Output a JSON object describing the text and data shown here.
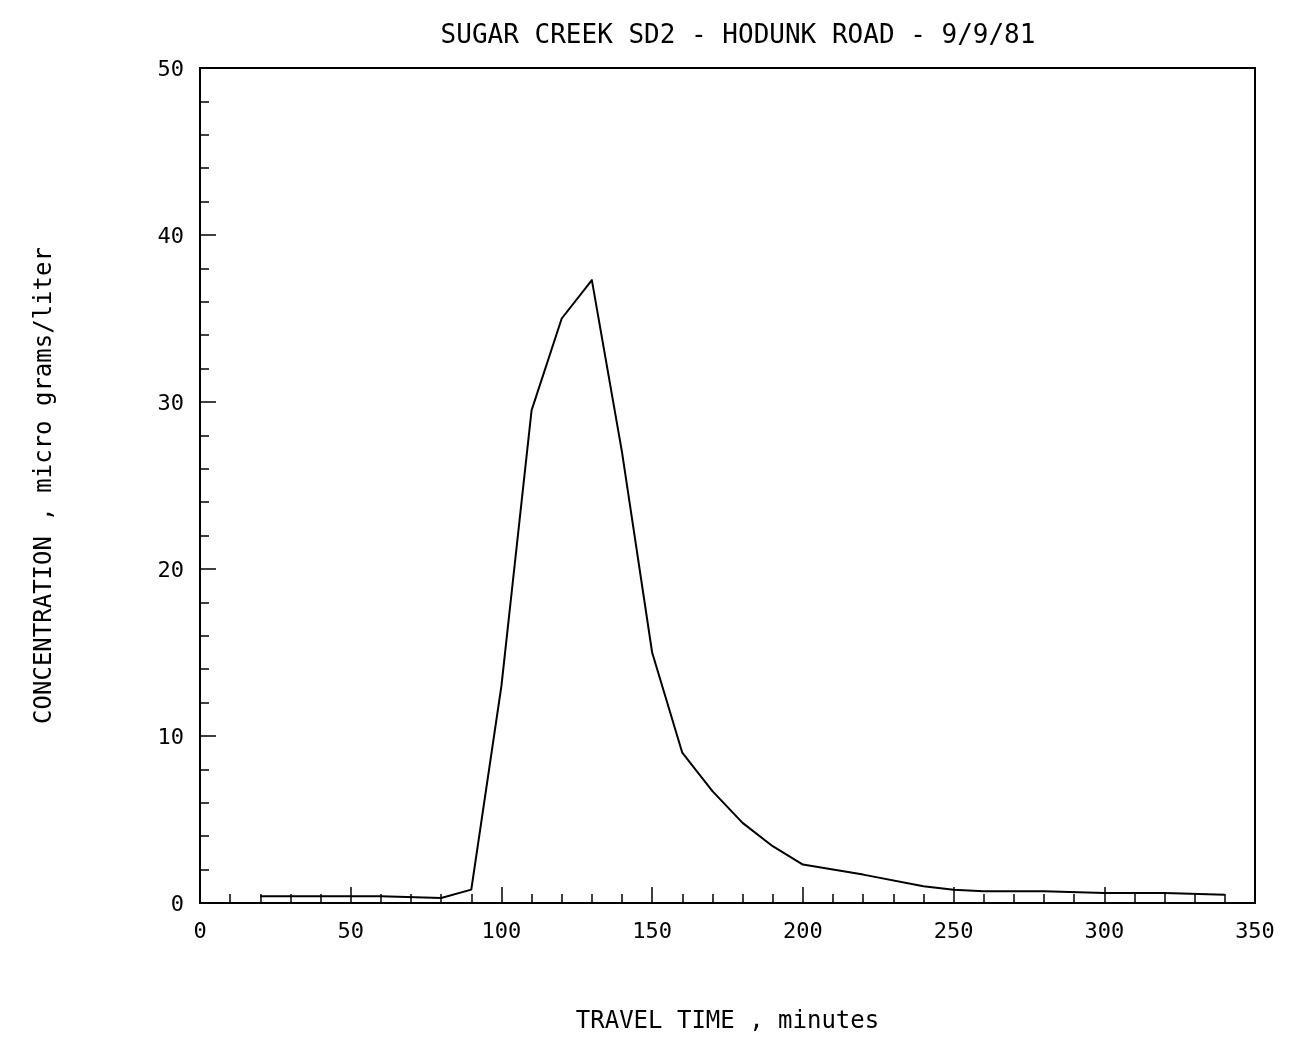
{
  "chart_data": {
    "type": "line",
    "title": "SUGAR CREEK SD2 - HODUNK ROAD - 9/9/81",
    "xlabel": "TRAVEL TIME , minutes",
    "ylabel": "CONCENTRATION , micro grams/liter",
    "x": [
      20,
      40,
      60,
      80,
      90,
      100,
      110,
      120,
      130,
      140,
      150,
      160,
      170,
      180,
      190,
      200,
      220,
      240,
      250,
      260,
      280,
      300,
      320,
      340
    ],
    "series": [
      {
        "color": "#000000",
        "values": [
          0.4,
          0.4,
          0.4,
          0.3,
          0.8,
          13,
          29.5,
          35,
          37.3,
          27,
          15,
          9,
          6.7,
          4.8,
          3.4,
          2.3,
          1.7,
          1,
          0.8,
          0.7,
          0.7,
          0.6,
          0.6,
          0.5
        ]
      }
    ],
    "xlim": [
      0,
      350
    ],
    "xticks": [
      0,
      50,
      100,
      150,
      200,
      250,
      300,
      350
    ],
    "ylim": [
      0,
      50
    ],
    "yticks": [
      0,
      10,
      20,
      30,
      40,
      50
    ],
    "grid": false,
    "marker": "none",
    "line_style": "solid"
  }
}
